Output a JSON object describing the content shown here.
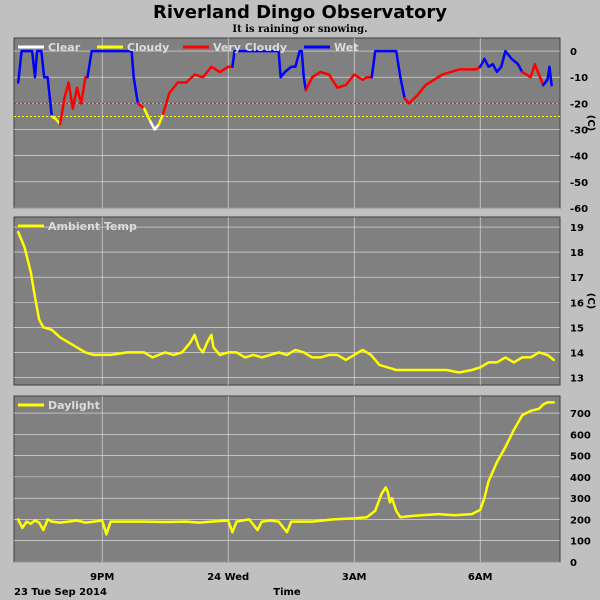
{
  "title": "Riverland Dingo Observatory",
  "subtitle": "It is raining or snowing.",
  "colors": {
    "background": "#c0c0c0",
    "plot_bg": "#808080",
    "grid": "#e6e6e6",
    "clear": "#ffffff",
    "cloudy": "#ffff00",
    "very_cloudy": "#ff0000",
    "wet": "#0000ff",
    "ambient": "#ffff00",
    "daylight": "#ffff00"
  },
  "chart_data": [
    {
      "type": "line",
      "name": "cloud-sky",
      "xlabel": "Time",
      "ylabel": "(C)",
      "ylim": [
        -60,
        5
      ],
      "yticks": [
        0,
        -10,
        -20,
        -30,
        -40,
        -50,
        -60
      ],
      "ref_lines": [
        {
          "value": -20,
          "color": "#ff0000"
        },
        {
          "value": -25,
          "color": "#ffff00"
        }
      ],
      "legend": [
        "Clear",
        "Cloudy",
        "Very Cloudy",
        "Wet"
      ],
      "series": [
        {
          "name": "Wet",
          "color": "#0000ff",
          "points": [
            [
              19.0,
              -12
            ],
            [
              19.08,
              0
            ],
            [
              19.33,
              0
            ],
            [
              19.4,
              -10
            ],
            [
              19.45,
              0
            ],
            [
              19.55,
              0
            ],
            [
              19.62,
              -10
            ],
            [
              19.7,
              -10
            ],
            [
              19.8,
              -25
            ]
          ]
        },
        {
          "name": "Cloudy",
          "color": "#ffff00",
          "points": [
            [
              19.8,
              -25
            ],
            [
              19.9,
              -26
            ],
            [
              20.0,
              -28
            ]
          ]
        },
        {
          "name": "Very Cloudy",
          "color": "#ff0000",
          "points": [
            [
              20.0,
              -28
            ],
            [
              20.1,
              -18
            ],
            [
              20.2,
              -12
            ],
            [
              20.3,
              -22
            ],
            [
              20.4,
              -14
            ],
            [
              20.5,
              -20
            ],
            [
              20.6,
              -10
            ],
            [
              20.65,
              -10
            ]
          ]
        },
        {
          "name": "Wet",
          "color": "#0000ff",
          "points": [
            [
              20.65,
              -10
            ],
            [
              20.75,
              0
            ],
            [
              21.7,
              0
            ],
            [
              21.75,
              -10
            ],
            [
              21.85,
              -20
            ]
          ]
        },
        {
          "name": "Very Cloudy",
          "color": "#ff0000",
          "points": [
            [
              21.85,
              -20
            ],
            [
              22.0,
              -22
            ]
          ]
        },
        {
          "name": "Cloudy",
          "color": "#ffff00",
          "points": [
            [
              22.0,
              -22
            ],
            [
              22.15,
              -27
            ]
          ]
        },
        {
          "name": "Clear",
          "color": "#ffffff",
          "points": [
            [
              22.15,
              -27
            ],
            [
              22.25,
              -30
            ],
            [
              22.35,
              -28
            ]
          ]
        },
        {
          "name": "Cloudy",
          "color": "#ffff00",
          "points": [
            [
              22.35,
              -28
            ],
            [
              22.45,
              -24
            ]
          ]
        },
        {
          "name": "Very Cloudy",
          "color": "#ff0000",
          "points": [
            [
              22.45,
              -24
            ],
            [
              22.6,
              -16
            ],
            [
              22.8,
              -12
            ],
            [
              23.0,
              -12
            ],
            [
              23.2,
              -9
            ],
            [
              23.4,
              -10
            ],
            [
              23.6,
              -6
            ],
            [
              23.8,
              -8
            ],
            [
              24.0,
              -6
            ],
            [
              24.1,
              -6
            ]
          ]
        },
        {
          "name": "Wet",
          "color": "#0000ff",
          "points": [
            [
              24.1,
              -6
            ],
            [
              24.15,
              0
            ],
            [
              25.2,
              0
            ],
            [
              25.25,
              -10
            ],
            [
              25.35,
              -8
            ],
            [
              25.5,
              -6
            ],
            [
              25.6,
              -6
            ],
            [
              25.7,
              0
            ],
            [
              25.75,
              0
            ],
            [
              25.8,
              -10
            ],
            [
              25.85,
              -15
            ]
          ]
        },
        {
          "name": "Very Cloudy",
          "color": "#ff0000",
          "points": [
            [
              25.85,
              -15
            ],
            [
              26.0,
              -10
            ],
            [
              26.2,
              -8
            ],
            [
              26.4,
              -9
            ],
            [
              26.6,
              -14
            ],
            [
              26.8,
              -13
            ],
            [
              27.0,
              -9
            ],
            [
              27.2,
              -11
            ],
            [
              27.3,
              -10
            ],
            [
              27.42,
              -10
            ]
          ]
        },
        {
          "name": "Wet",
          "color": "#0000ff",
          "points": [
            [
              27.42,
              -10
            ],
            [
              27.5,
              0
            ],
            [
              28.0,
              0
            ],
            [
              28.1,
              -10
            ],
            [
              28.2,
              -18
            ]
          ]
        },
        {
          "name": "Very Cloudy",
          "color": "#ff0000",
          "points": [
            [
              28.2,
              -18
            ],
            [
              28.3,
              -20
            ],
            [
              28.5,
              -17
            ],
            [
              28.7,
              -13
            ],
            [
              28.9,
              -11
            ],
            [
              29.1,
              -9
            ],
            [
              29.3,
              -8
            ],
            [
              29.5,
              -7
            ],
            [
              29.7,
              -7
            ],
            [
              29.9,
              -7
            ],
            [
              30.0,
              -6
            ]
          ]
        },
        {
          "name": "Wet",
          "color": "#0000ff",
          "points": [
            [
              30.0,
              -6
            ],
            [
              30.1,
              -3
            ],
            [
              30.2,
              -6
            ],
            [
              30.3,
              -5
            ],
            [
              30.4,
              -8
            ],
            [
              30.5,
              -6
            ],
            [
              30.6,
              0
            ],
            [
              30.75,
              -3
            ],
            [
              30.9,
              -5
            ],
            [
              31.0,
              -8
            ]
          ]
        },
        {
          "name": "Very Cloudy",
          "color": "#ff0000",
          "points": [
            [
              31.0,
              -8
            ],
            [
              31.2,
              -10
            ],
            [
              31.3,
              -5
            ],
            [
              31.4,
              -9
            ],
            [
              31.5,
              -13
            ]
          ]
        },
        {
          "name": "Wet",
          "color": "#0000ff",
          "points": [
            [
              31.5,
              -13
            ],
            [
              31.6,
              -11
            ],
            [
              31.65,
              -6
            ],
            [
              31.7,
              -13
            ]
          ]
        }
      ]
    },
    {
      "type": "line",
      "name": "ambient-temp",
      "ylabel": "(C)",
      "ylim": [
        12.7,
        19.4
      ],
      "yticks": [
        13,
        14,
        15,
        16,
        17,
        18,
        19
      ],
      "legend": [
        "Ambient Temp"
      ],
      "series": [
        {
          "name": "Ambient Temp",
          "color": "#ffff00",
          "points": [
            [
              19.0,
              18.8
            ],
            [
              19.15,
              18.2
            ],
            [
              19.3,
              17.2
            ],
            [
              19.4,
              16.2
            ],
            [
              19.5,
              15.3
            ],
            [
              19.6,
              15.0
            ],
            [
              19.8,
              14.9
            ],
            [
              20.0,
              14.6
            ],
            [
              20.2,
              14.4
            ],
            [
              20.4,
              14.2
            ],
            [
              20.6,
              14.0
            ],
            [
              20.8,
              13.9
            ],
            [
              21.2,
              13.9
            ],
            [
              21.6,
              14.0
            ],
            [
              22.0,
              14.0
            ],
            [
              22.2,
              13.8
            ],
            [
              22.5,
              14.0
            ],
            [
              22.7,
              13.9
            ],
            [
              22.9,
              14.0
            ],
            [
              23.1,
              14.4
            ],
            [
              23.2,
              14.7
            ],
            [
              23.3,
              14.2
            ],
            [
              23.4,
              14.0
            ],
            [
              23.5,
              14.4
            ],
            [
              23.6,
              14.7
            ],
            [
              23.65,
              14.2
            ],
            [
              23.8,
              13.9
            ],
            [
              24.0,
              14.0
            ],
            [
              24.2,
              14.0
            ],
            [
              24.4,
              13.8
            ],
            [
              24.6,
              13.9
            ],
            [
              24.8,
              13.8
            ],
            [
              25.0,
              13.9
            ],
            [
              25.2,
              14.0
            ],
            [
              25.4,
              13.9
            ],
            [
              25.6,
              14.1
            ],
            [
              25.8,
              14.0
            ],
            [
              26.0,
              13.8
            ],
            [
              26.2,
              13.8
            ],
            [
              26.4,
              13.9
            ],
            [
              26.6,
              13.9
            ],
            [
              26.8,
              13.7
            ],
            [
              27.0,
              13.9
            ],
            [
              27.2,
              14.1
            ],
            [
              27.4,
              13.9
            ],
            [
              27.6,
              13.5
            ],
            [
              27.8,
              13.4
            ],
            [
              28.0,
              13.3
            ],
            [
              28.4,
              13.3
            ],
            [
              28.8,
              13.3
            ],
            [
              29.2,
              13.3
            ],
            [
              29.5,
              13.2
            ],
            [
              29.8,
              13.3
            ],
            [
              30.0,
              13.4
            ],
            [
              30.2,
              13.6
            ],
            [
              30.4,
              13.6
            ],
            [
              30.6,
              13.8
            ],
            [
              30.8,
              13.6
            ],
            [
              31.0,
              13.8
            ],
            [
              31.2,
              13.8
            ],
            [
              31.4,
              14.0
            ],
            [
              31.6,
              13.9
            ],
            [
              31.75,
              13.7
            ]
          ]
        }
      ]
    },
    {
      "type": "line",
      "name": "daylight",
      "ylim": [
        0,
        780
      ],
      "yticks": [
        0,
        100,
        200,
        300,
        400,
        500,
        600,
        700
      ],
      "legend": [
        "Daylight"
      ],
      "series": [
        {
          "name": "Daylight",
          "color": "#ffff00",
          "points": [
            [
              19.0,
              200
            ],
            [
              19.1,
              160
            ],
            [
              19.2,
              190
            ],
            [
              19.3,
              180
            ],
            [
              19.4,
              195
            ],
            [
              19.5,
              185
            ],
            [
              19.6,
              150
            ],
            [
              19.7,
              200
            ],
            [
              19.8,
              190
            ],
            [
              20.0,
              185
            ],
            [
              20.2,
              190
            ],
            [
              20.4,
              195
            ],
            [
              20.6,
              185
            ],
            [
              20.8,
              190
            ],
            [
              21.0,
              195
            ],
            [
              21.1,
              130
            ],
            [
              21.2,
              190
            ],
            [
              21.5,
              190
            ],
            [
              22.0,
              190
            ],
            [
              22.5,
              188
            ],
            [
              23.0,
              190
            ],
            [
              23.3,
              185
            ],
            [
              23.6,
              190
            ],
            [
              24.0,
              195
            ],
            [
              24.1,
              140
            ],
            [
              24.2,
              190
            ],
            [
              24.5,
              200
            ],
            [
              24.7,
              150
            ],
            [
              24.8,
              190
            ],
            [
              25.0,
              195
            ],
            [
              25.2,
              190
            ],
            [
              25.4,
              140
            ],
            [
              25.5,
              190
            ],
            [
              26.0,
              190
            ],
            [
              26.5,
              200
            ],
            [
              27.0,
              205
            ],
            [
              27.3,
              210
            ],
            [
              27.5,
              240
            ],
            [
              27.65,
              320
            ],
            [
              27.75,
              350
            ],
            [
              27.8,
              330
            ],
            [
              27.85,
              280
            ],
            [
              27.9,
              300
            ],
            [
              28.0,
              240
            ],
            [
              28.1,
              210
            ],
            [
              28.3,
              215
            ],
            [
              28.6,
              220
            ],
            [
              29.0,
              225
            ],
            [
              29.4,
              220
            ],
            [
              29.8,
              225
            ],
            [
              30.0,
              245
            ],
            [
              30.1,
              300
            ],
            [
              30.2,
              380
            ],
            [
              30.4,
              470
            ],
            [
              30.6,
              540
            ],
            [
              30.8,
              620
            ],
            [
              31.0,
              690
            ],
            [
              31.2,
              710
            ],
            [
              31.4,
              720
            ],
            [
              31.5,
              740
            ],
            [
              31.6,
              750
            ],
            [
              31.75,
              750
            ]
          ]
        }
      ]
    }
  ],
  "xaxis": {
    "ticks": [
      {
        "x": 21,
        "label": "9PM"
      },
      {
        "x": 24,
        "label": "24 Wed"
      },
      {
        "x": 27,
        "label": "3AM"
      },
      {
        "x": 30,
        "label": "6AM"
      }
    ],
    "xlim": [
      18.9,
      31.9
    ],
    "start_label": "23 Tue Sep 2014",
    "axis_label": "Time"
  }
}
